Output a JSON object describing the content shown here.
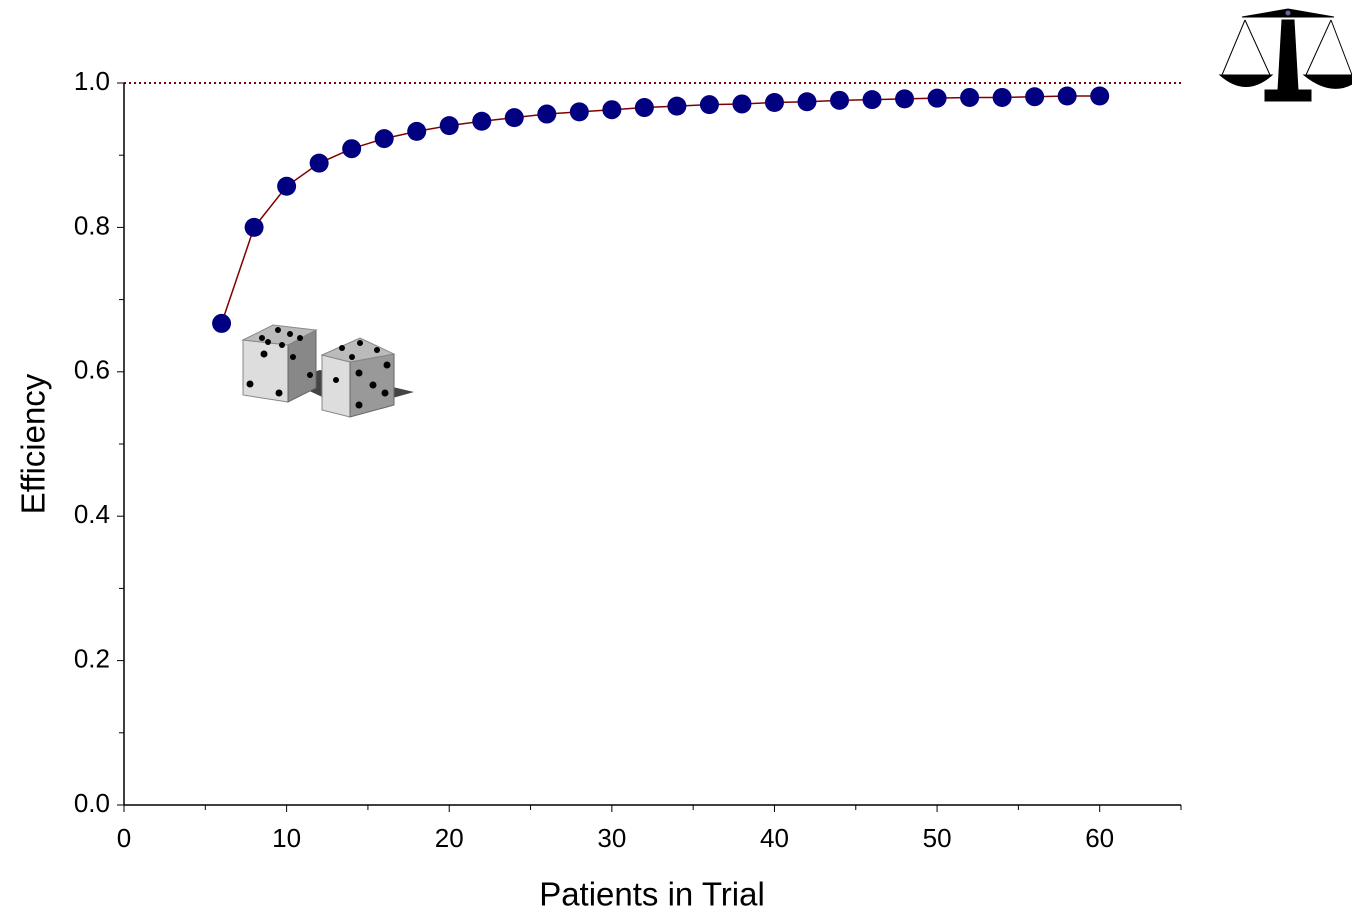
{
  "chart_data": {
    "type": "line",
    "x_label": "Patients in Trial",
    "y_label": "Efficiency",
    "x": [
      6,
      8,
      10,
      12,
      14,
      16,
      18,
      20,
      22,
      24,
      26,
      28,
      30,
      32,
      34,
      36,
      38,
      40,
      42,
      44,
      46,
      48,
      50,
      52,
      54,
      56,
      58,
      60
    ],
    "series": [
      {
        "color": "#800000",
        "marker_color": "#000080",
        "values": [
          0.667,
          0.8,
          0.857,
          0.889,
          0.909,
          0.923,
          0.933,
          0.941,
          0.947,
          0.952,
          0.957,
          0.96,
          0.963,
          0.966,
          0.968,
          0.97,
          0.971,
          0.973,
          0.974,
          0.976,
          0.977,
          0.978,
          0.979,
          0.98,
          0.98,
          0.981,
          0.982,
          0.982
        ]
      }
    ],
    "xlim": [
      0,
      65
    ],
    "xticks": [
      0,
      10,
      20,
      30,
      40,
      50,
      60
    ],
    "xminorticks": [
      5,
      15,
      25,
      35,
      45,
      55,
      65
    ],
    "ylim": [
      0,
      1
    ],
    "yticks": [
      {
        "value": 0,
        "label": "0.0"
      },
      0.2,
      0.4,
      0.6,
      0.8,
      {
        "value": 1,
        "label": "1.0"
      }
    ],
    "yminorticks": [
      0.1,
      0.3,
      0.5,
      0.7,
      0.9
    ],
    "reference_line": {
      "value": 1,
      "color": "#800000"
    }
  }
}
